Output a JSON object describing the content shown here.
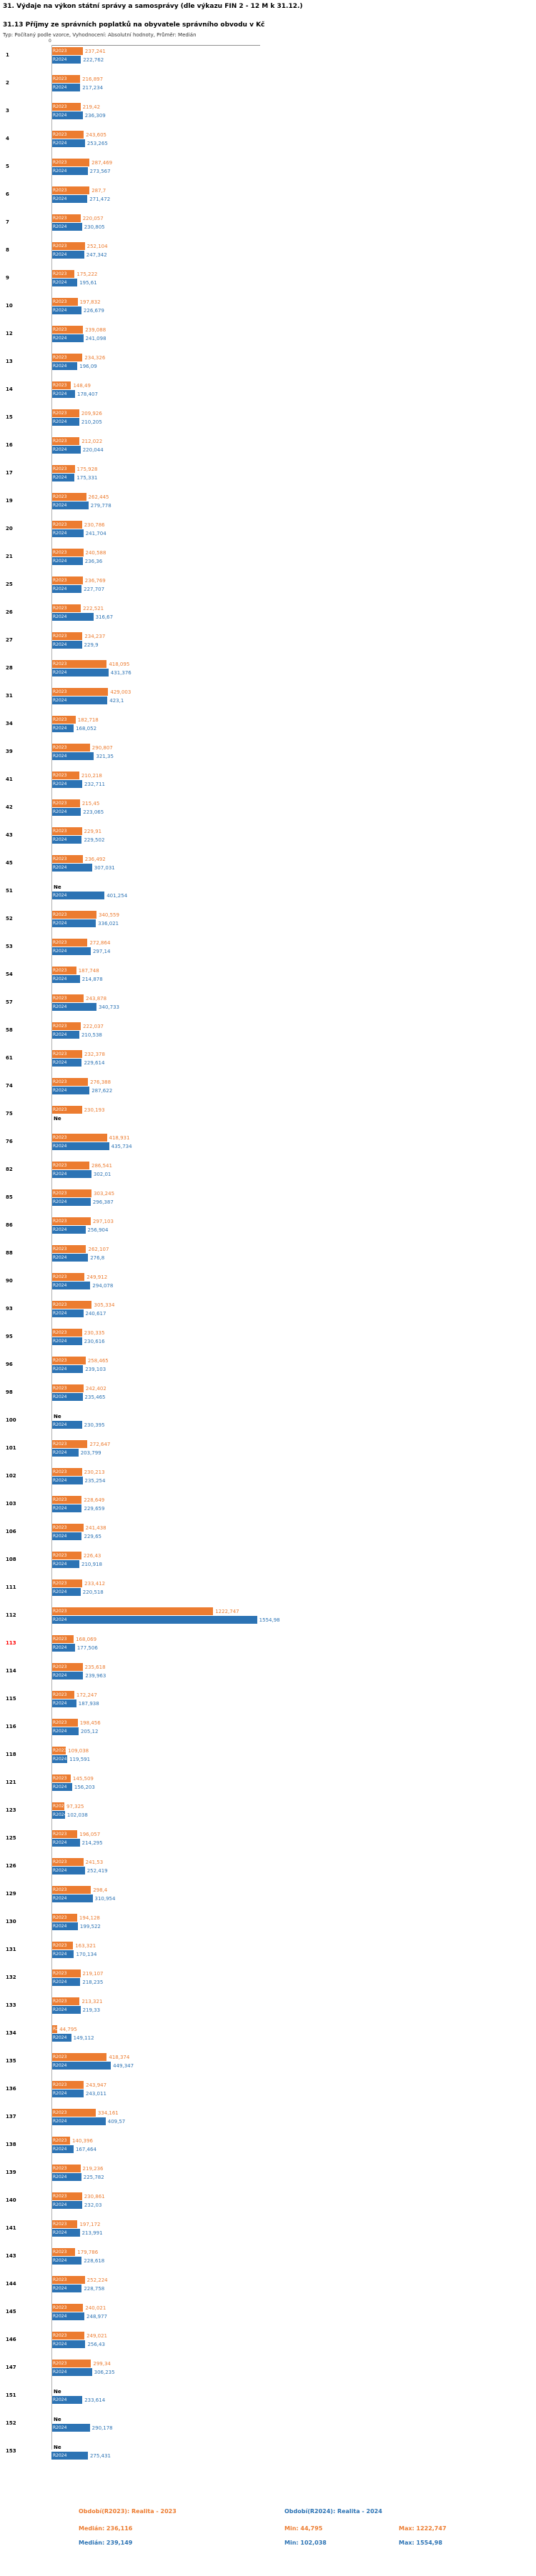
{
  "chart_data": {
    "type": "bar",
    "orientation": "horizontal",
    "title": "31. Výdaje na výkon státní správy a samosprávy (dle výkazu FIN 2 - 12 M k 31.12.)",
    "subtitle": "31.13 Příjmy ze správních poplatků na obyvatele správního obvodu v Kč",
    "note": "Typ: Počítaný podle vzorce, Vyhodnocení: Absolutní hodnoty, Průměr: Medián",
    "axis": {
      "zero": "0"
    },
    "no_data_label": "Ne",
    "highlight_color": "#ff0000",
    "series": [
      {
        "name": "R2023",
        "color": "#EC7C30",
        "legend_title": "Období(R2023): Realita - 2023",
        "legend_median": "Medián: 236,116",
        "legend_min": "Min: 44,795",
        "legend_max": "Max: 1222,747"
      },
      {
        "name": "R2024",
        "color": "#2C73B4",
        "legend_title": "Období(R2024): Realita - 2024",
        "legend_median": "Medián: 239,149",
        "legend_min": "Min: 102,038",
        "legend_max": "Max: 1554,98"
      }
    ],
    "rows": [
      {
        "id": "1",
        "r2023": "237,241",
        "r2024": "222,762"
      },
      {
        "id": "2",
        "r2023": "216,897",
        "r2024": "217,234"
      },
      {
        "id": "3",
        "r2023": "219,42",
        "r2024": "236,309"
      },
      {
        "id": "4",
        "r2023": "243,605",
        "r2024": "253,265"
      },
      {
        "id": "5",
        "r2023": "287,469",
        "r2024": "273,567"
      },
      {
        "id": "6",
        "r2023": "287,7",
        "r2024": "271,472"
      },
      {
        "id": "7",
        "r2023": "220,057",
        "r2024": "230,805"
      },
      {
        "id": "8",
        "r2023": "252,104",
        "r2024": "247,342"
      },
      {
        "id": "9",
        "r2023": "175,222",
        "r2024": "195,61"
      },
      {
        "id": "10",
        "r2023": "197,832",
        "r2024": "226,679"
      },
      {
        "id": "12",
        "r2023": "239,088",
        "r2024": "241,098"
      },
      {
        "id": "13",
        "r2023": "234,326",
        "r2024": "196,09"
      },
      {
        "id": "14",
        "r2023": "148,49",
        "r2024": "178,407"
      },
      {
        "id": "15",
        "r2023": "209,926",
        "r2024": "210,205"
      },
      {
        "id": "16",
        "r2023": "212,022",
        "r2024": "220,044"
      },
      {
        "id": "17",
        "r2023": "175,928",
        "r2024": "175,331"
      },
      {
        "id": "19",
        "r2023": "262,445",
        "r2024": "279,778"
      },
      {
        "id": "20",
        "r2023": "230,786",
        "r2024": "241,704"
      },
      {
        "id": "21",
        "r2023": "240,588",
        "r2024": "236,36"
      },
      {
        "id": "25",
        "r2023": "236,769",
        "r2024": "227,707"
      },
      {
        "id": "26",
        "r2023": "222,521",
        "r2024": "316,67"
      },
      {
        "id": "27",
        "r2023": "234,237",
        "r2024": "229,9"
      },
      {
        "id": "28",
        "r2023": "418,095",
        "r2024": "431,376"
      },
      {
        "id": "31",
        "r2023": "429,003",
        "r2024": "423,1"
      },
      {
        "id": "34",
        "r2023": "182,718",
        "r2024": "168,052"
      },
      {
        "id": "39",
        "r2023": "290,807",
        "r2024": "321,35"
      },
      {
        "id": "41",
        "r2023": "210,218",
        "r2024": "232,711"
      },
      {
        "id": "42",
        "r2023": "215,45",
        "r2024": "223,065"
      },
      {
        "id": "43",
        "r2023": "229,91",
        "r2024": "229,502"
      },
      {
        "id": "45",
        "r2023": "236,492",
        "r2024": "307,031"
      },
      {
        "id": "51",
        "r2023": "Ne",
        "r2024": "401,254"
      },
      {
        "id": "52",
        "r2023": "340,559",
        "r2024": "336,021"
      },
      {
        "id": "53",
        "r2023": "272,864",
        "r2024": "297,14"
      },
      {
        "id": "54",
        "r2023": "187,748",
        "r2024": "214,878"
      },
      {
        "id": "57",
        "r2023": "243,878",
        "r2024": "340,733"
      },
      {
        "id": "58",
        "r2023": "222,037",
        "r2024": "210,538"
      },
      {
        "id": "61",
        "r2023": "232,378",
        "r2024": "229,614"
      },
      {
        "id": "74",
        "r2023": "276,388",
        "r2024": "287,622"
      },
      {
        "id": "75",
        "r2023": "230,193",
        "r2024": "Ne"
      },
      {
        "id": "76",
        "r2023": "418,931",
        "r2024": "435,734"
      },
      {
        "id": "82",
        "r2023": "286,541",
        "r2024": "302,01"
      },
      {
        "id": "85",
        "r2023": "303,245",
        "r2024": "296,387"
      },
      {
        "id": "86",
        "r2023": "297,103",
        "r2024": "256,904"
      },
      {
        "id": "88",
        "r2023": "262,107",
        "r2024": "276,8"
      },
      {
        "id": "90",
        "r2023": "249,912",
        "r2024": "294,078"
      },
      {
        "id": "93",
        "r2023": "305,334",
        "r2024": "240,617"
      },
      {
        "id": "95",
        "r2023": "230,335",
        "r2024": "230,616"
      },
      {
        "id": "96",
        "r2023": "258,465",
        "r2024": "239,103"
      },
      {
        "id": "98",
        "r2023": "242,402",
        "r2024": "235,465"
      },
      {
        "id": "100",
        "r2023": "Ne",
        "r2024": "230,395"
      },
      {
        "id": "101",
        "r2023": "272,647",
        "r2024": "203,799"
      },
      {
        "id": "102",
        "r2023": "230,213",
        "r2024": "235,254"
      },
      {
        "id": "103",
        "r2023": "228,649",
        "r2024": "229,659"
      },
      {
        "id": "106",
        "r2023": "241,438",
        "r2024": "229,65"
      },
      {
        "id": "108",
        "r2023": "226,43",
        "r2024": "210,918"
      },
      {
        "id": "111",
        "r2023": "233,412",
        "r2024": "220,518"
      },
      {
        "id": "112",
        "r2023": "1222,747",
        "r2024": "1554,98"
      },
      {
        "id": "113",
        "r2023": "168,069",
        "r2024": "177,506",
        "highlight": true
      },
      {
        "id": "114",
        "r2023": "235,618",
        "r2024": "239,963"
      },
      {
        "id": "115",
        "r2023": "172,247",
        "r2024": "187,938"
      },
      {
        "id": "116",
        "r2023": "198,456",
        "r2024": "205,12"
      },
      {
        "id": "118",
        "r2023": "109,038",
        "r2024": "119,591"
      },
      {
        "id": "121",
        "r2023": "145,509",
        "r2024": "156,203"
      },
      {
        "id": "123",
        "r2023": "97,325",
        "r2024": "102,038"
      },
      {
        "id": "125",
        "r2023": "196,057",
        "r2024": "214,295"
      },
      {
        "id": "126",
        "r2023": "241,53",
        "r2024": "252,419"
      },
      {
        "id": "129",
        "r2023": "298,4",
        "r2024": "310,954"
      },
      {
        "id": "130",
        "r2023": "194,128",
        "r2024": "199,522"
      },
      {
        "id": "131",
        "r2023": "163,321",
        "r2024": "170,134"
      },
      {
        "id": "132",
        "r2023": "219,107",
        "r2024": "218,235"
      },
      {
        "id": "133",
        "r2023": "213,321",
        "r2024": "219,33"
      },
      {
        "id": "134",
        "r2023": "44,795",
        "r2024": "149,112"
      },
      {
        "id": "135",
        "r2023": "418,374",
        "r2024": "449,347"
      },
      {
        "id": "136",
        "r2023": "243,947",
        "r2024": "243,011"
      },
      {
        "id": "137",
        "r2023": "334,161",
        "r2024": "409,57"
      },
      {
        "id": "138",
        "r2023": "140,396",
        "r2024": "167,464"
      },
      {
        "id": "139",
        "r2023": "219,236",
        "r2024": "225,782"
      },
      {
        "id": "140",
        "r2023": "230,861",
        "r2024": "232,03"
      },
      {
        "id": "141",
        "r2023": "197,172",
        "r2024": "213,991"
      },
      {
        "id": "143",
        "r2023": "179,786",
        "r2024": "228,618"
      },
      {
        "id": "144",
        "r2023": "252,224",
        "r2024": "228,758"
      },
      {
        "id": "145",
        "r2023": "240,021",
        "r2024": "248,977"
      },
      {
        "id": "146",
        "r2023": "249,021",
        "r2024": "256,43"
      },
      {
        "id": "147",
        "r2023": "299,34",
        "r2024": "306,235"
      },
      {
        "id": "151",
        "r2023": "Ne",
        "r2024": "233,614"
      },
      {
        "id": "152",
        "r2023": "Ne",
        "r2024": "290,178"
      },
      {
        "id": "153",
        "r2023": "Ne",
        "r2024": "275,431"
      }
    ]
  }
}
